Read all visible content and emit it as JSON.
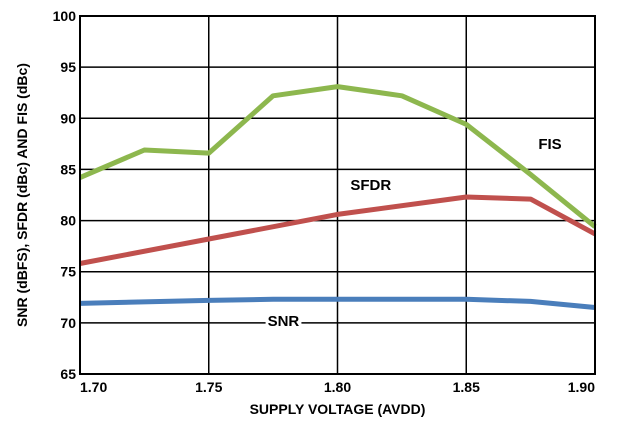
{
  "chart_data": {
    "type": "line",
    "xlabel": "SUPPLY VOLTAGE (AVDD)",
    "ylabel": "SNR (dBFS), SFDR (dBc) AND FIS (dBc)",
    "xlim": [
      1.7,
      1.9
    ],
    "ylim": [
      65,
      100
    ],
    "x_ticks": [
      "1.70",
      "1.75",
      "1.80",
      "1.85",
      "1.90"
    ],
    "y_ticks": [
      "65",
      "70",
      "75",
      "80",
      "85",
      "90",
      "95",
      "100"
    ],
    "grid": true,
    "series": [
      {
        "name": "FIS",
        "color": "#8db74e",
        "x": [
          1.7,
          1.725,
          1.75,
          1.775,
          1.8,
          1.825,
          1.85,
          1.875,
          1.9
        ],
        "y": [
          84.2,
          86.9,
          86.6,
          92.2,
          93.1,
          92.2,
          89.4,
          84.5,
          79.4
        ]
      },
      {
        "name": "SFDR",
        "color": "#c0504d",
        "x": [
          1.7,
          1.75,
          1.8,
          1.85,
          1.875,
          1.9
        ],
        "y": [
          75.8,
          78.2,
          80.6,
          82.3,
          82.1,
          78.7
        ]
      },
      {
        "name": "SNR",
        "color": "#4a7ebb",
        "x": [
          1.7,
          1.75,
          1.775,
          1.8,
          1.85,
          1.875,
          1.9
        ],
        "y": [
          71.9,
          72.2,
          72.3,
          72.3,
          72.3,
          72.1,
          71.5
        ]
      }
    ]
  }
}
